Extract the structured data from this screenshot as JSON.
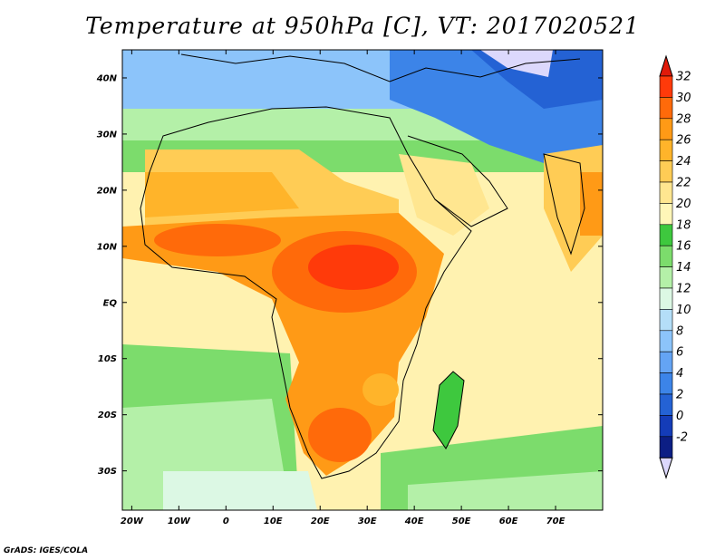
{
  "title": "Temperature at 950hPa [C], VT: 2017020521",
  "credit": "GrADS: IGES/COLA",
  "map": {
    "lon_range": [
      -22,
      80
    ],
    "lat_range": [
      -37,
      45
    ],
    "lat_ticks": [
      {
        "value": 40,
        "label": "40N"
      },
      {
        "value": 30,
        "label": "30N"
      },
      {
        "value": 20,
        "label": "20N"
      },
      {
        "value": 10,
        "label": "10N"
      },
      {
        "value": 0,
        "label": "EQ"
      },
      {
        "value": -10,
        "label": "10S"
      },
      {
        "value": -20,
        "label": "20S"
      },
      {
        "value": -30,
        "label": "30S"
      }
    ],
    "lon_ticks": [
      {
        "value": -20,
        "label": "20W"
      },
      {
        "value": -10,
        "label": "10W"
      },
      {
        "value": 0,
        "label": "0"
      },
      {
        "value": 10,
        "label": "10E"
      },
      {
        "value": 20,
        "label": "20E"
      },
      {
        "value": 30,
        "label": "30E"
      },
      {
        "value": 40,
        "label": "40E"
      },
      {
        "value": 50,
        "label": "50E"
      },
      {
        "value": 60,
        "label": "60E"
      },
      {
        "value": 70,
        "label": "70E"
      }
    ]
  },
  "colorbar": {
    "levels": [
      "32",
      "30",
      "28",
      "26",
      "24",
      "22",
      "20",
      "18",
      "16",
      "14",
      "12",
      "10",
      "8",
      "6",
      "4",
      "2",
      "0",
      "-2"
    ],
    "colors": [
      "#ff3a0a",
      "#ff6a0a",
      "#ff9a16",
      "#ffb42a",
      "#ffcc55",
      "#ffe690",
      "#fff6b8",
      "#3ec83e",
      "#7cdc6c",
      "#b4f0a8",
      "#dcf8e4",
      "#b4def8",
      "#8cc4fa",
      "#64a4f4",
      "#3c84e8",
      "#2462d4",
      "#143cb8",
      "#0c1e84"
    ],
    "top_color": "#e01a0a",
    "bottom_color": "#dcd8fc"
  }
}
